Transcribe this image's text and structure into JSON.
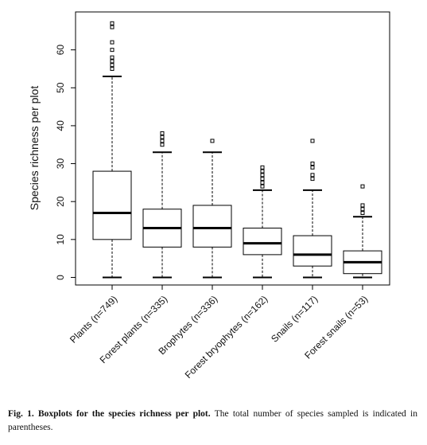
{
  "chart_data": {
    "type": "box",
    "y_label": "Species richness per plot",
    "categories": [
      "Plants (n=749)",
      "Forest plants (n=335)",
      "Brophytes (n=336)",
      "Forest bryophytes (n=162)",
      "Snails (n=117)",
      "Forest snails (n=53)"
    ],
    "boxes": [
      {
        "min": 0,
        "q1": 10,
        "median": 17,
        "q3": 28,
        "max": 53,
        "outliers": [
          55,
          56,
          57,
          58,
          60,
          62,
          66,
          67
        ]
      },
      {
        "min": 0,
        "q1": 8,
        "median": 13,
        "q3": 18,
        "max": 33,
        "outliers": [
          35,
          36,
          37,
          38
        ]
      },
      {
        "min": 0,
        "q1": 8,
        "median": 13,
        "q3": 19,
        "max": 33,
        "outliers": [
          36
        ]
      },
      {
        "min": 0,
        "q1": 6,
        "median": 9,
        "q3": 13,
        "max": 23,
        "outliers": [
          24,
          25,
          26,
          27,
          28,
          29
        ]
      },
      {
        "min": 0,
        "q1": 3,
        "median": 6,
        "q3": 11,
        "max": 23,
        "outliers": [
          26,
          27,
          29,
          30,
          36
        ]
      },
      {
        "min": 0,
        "q1": 1,
        "median": 4,
        "q3": 7,
        "max": 16,
        "outliers": [
          17,
          18,
          19,
          24
        ]
      }
    ],
    "ylim": [
      -2,
      70
    ],
    "yticks": [
      0,
      10,
      20,
      30,
      40,
      50,
      60
    ],
    "color": "#000000"
  },
  "caption": {
    "label": "Fig. 1.",
    "title": "Boxplots for the species richness per plot.",
    "text": "The total number of species sampled is indicated in parentheses."
  }
}
